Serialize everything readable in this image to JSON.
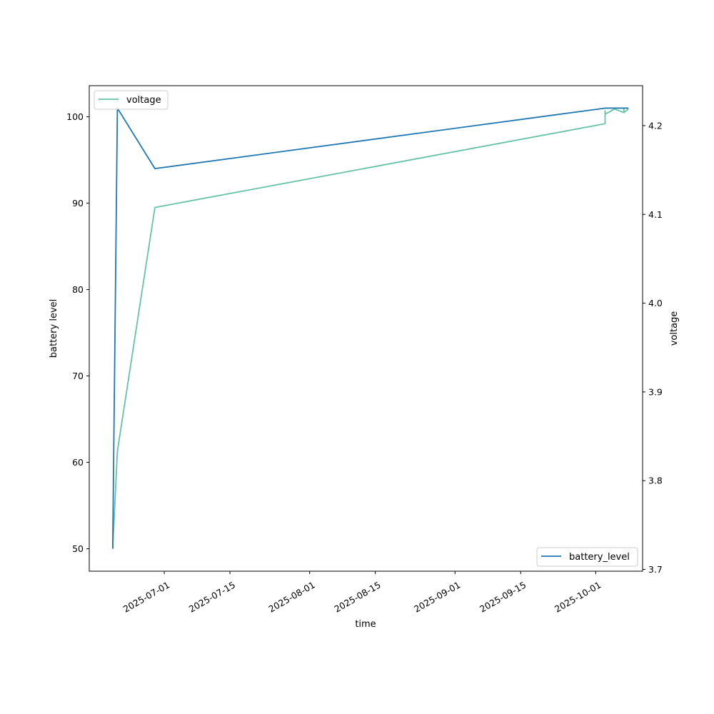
{
  "chart_data": {
    "type": "line",
    "title": "",
    "xlabel": "time",
    "ylabel_left": "battery level",
    "ylabel_right": "voltage",
    "x_ticks": [
      "2025-07-01",
      "2025-07-15",
      "2025-08-01",
      "2025-08-15",
      "2025-09-01",
      "2025-09-15",
      "2025-10-01"
    ],
    "left_ticks": [
      50,
      60,
      70,
      80,
      90,
      100
    ],
    "right_ticks": [
      3.7,
      3.8,
      3.9,
      4.0,
      4.1,
      4.2
    ],
    "left_ylim": [
      47.4,
      103.6
    ],
    "right_ylim": [
      3.698,
      4.245
    ],
    "xlim": [
      "2025-06-15",
      "2025-10-11"
    ],
    "grid": false,
    "series": [
      {
        "name": "battery_level",
        "axis": "left",
        "color": "#1f77b4",
        "legend": "lower-right",
        "points": [
          [
            "2025-06-20",
            50
          ],
          [
            "2025-06-21",
            101
          ],
          [
            "2025-06-29",
            94
          ],
          [
            "2025-10-03",
            101
          ],
          [
            "2025-10-08",
            101
          ]
        ]
      },
      {
        "name": "voltage",
        "axis": "left",
        "color": "#66c2a5",
        "legend": "upper-left",
        "points": [
          [
            "2025-06-20",
            50
          ],
          [
            "2025-06-21",
            61.3
          ],
          [
            "2025-06-29",
            89.5
          ],
          [
            "2025-10-03",
            99.2
          ],
          [
            "2025-10-03",
            100.7
          ],
          [
            "2025-10-03",
            100.3
          ],
          [
            "2025-10-05",
            100.9
          ],
          [
            "2025-10-07",
            100.5
          ],
          [
            "2025-10-07",
            101.0
          ],
          [
            "2025-10-07",
            100.5
          ],
          [
            "2025-10-08",
            100.9
          ]
        ]
      }
    ]
  }
}
